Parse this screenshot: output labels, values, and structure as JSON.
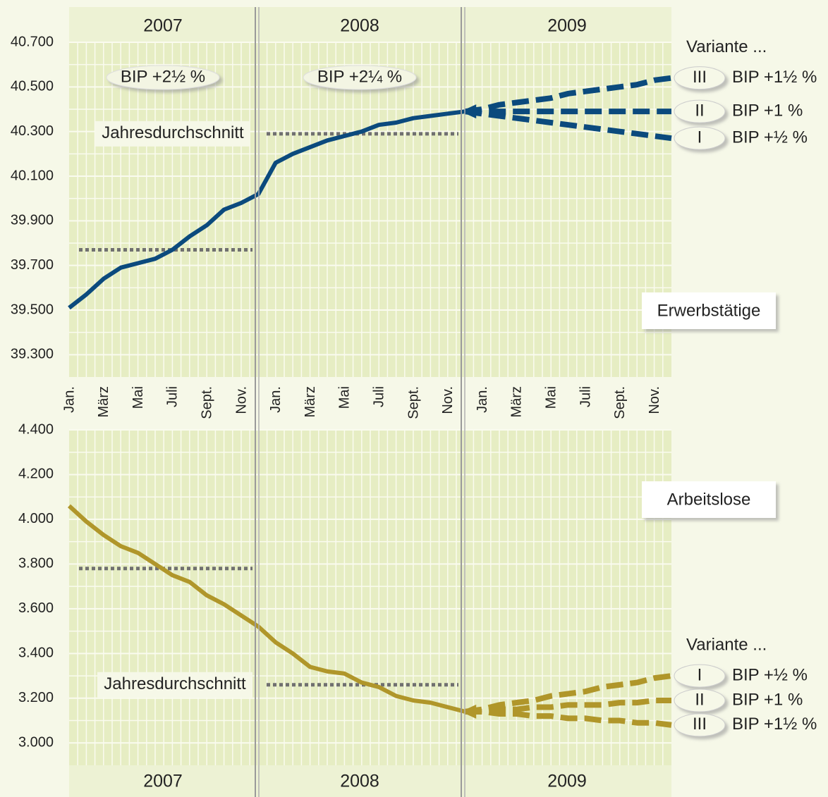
{
  "chart_data": [
    {
      "type": "line",
      "panel_label": "Erwerbstätige",
      "years": [
        "2007",
        "2008",
        "2009"
      ],
      "categories": [
        "Jan.",
        null,
        "März",
        null,
        "Mai",
        null,
        "Juli",
        null,
        "Sept.",
        null,
        "Nov.",
        null,
        "Jan.",
        null,
        "März",
        null,
        "Mai",
        null,
        "Juli",
        null,
        "Sept.",
        null,
        "Nov.",
        null,
        "Jan.",
        null,
        "März",
        null,
        "Mai",
        null,
        "Juli",
        null,
        "Sept.",
        null,
        "Nov.",
        null
      ],
      "ylim": [
        39200,
        40700
      ],
      "yticks": [
        {
          "value": 39300,
          "label": "39.300"
        },
        {
          "value": 39500,
          "label": "39.500"
        },
        {
          "value": 39700,
          "label": "39.700"
        },
        {
          "value": 39900,
          "label": "39.900"
        },
        {
          "value": 40100,
          "label": "40.100"
        },
        {
          "value": 40300,
          "label": "40.300"
        },
        {
          "value": 40500,
          "label": "40.500"
        },
        {
          "value": 40700,
          "label": "40.700"
        }
      ],
      "grid": true,
      "annotations": [
        "BIP +2½ %",
        "BIP +2¼ %"
      ],
      "average_label": "Jahresdurchschnitt",
      "annual_averages": [
        39770,
        40290,
        null
      ],
      "legend_title": "Variante ...",
      "series": [
        {
          "name": "Erwerbstätige",
          "color": "#0b4a7d",
          "dashed": false,
          "values": [
            39510,
            39570,
            39640,
            39690,
            39710,
            39730,
            39770,
            39830,
            39880,
            39950,
            39980,
            40020,
            40160,
            40200,
            40230,
            40260,
            40280,
            40300,
            40330,
            40340,
            40360,
            40370,
            40380,
            40390,
            null,
            null,
            null,
            null,
            null,
            null,
            null,
            null,
            null,
            null,
            null,
            null
          ]
        },
        {
          "name": "III",
          "label": "BIP +1½ %",
          "color": "#0b4a7d",
          "dashed": true,
          "values": [
            null,
            null,
            null,
            null,
            null,
            null,
            null,
            null,
            null,
            null,
            null,
            null,
            null,
            null,
            null,
            null,
            null,
            null,
            null,
            null,
            null,
            null,
            null,
            40390,
            40400,
            40420,
            40430,
            40440,
            40450,
            40470,
            40480,
            40490,
            40500,
            40510,
            40530,
            40540
          ]
        },
        {
          "name": "II",
          "label": "BIP +1 %",
          "color": "#0b4a7d",
          "dashed": true,
          "values": [
            null,
            null,
            null,
            null,
            null,
            null,
            null,
            null,
            null,
            null,
            null,
            null,
            null,
            null,
            null,
            null,
            null,
            null,
            null,
            null,
            null,
            null,
            null,
            40390,
            40390,
            40390,
            40390,
            40390,
            40390,
            40390,
            40390,
            40390,
            40390,
            40390,
            40390,
            40390
          ]
        },
        {
          "name": "I",
          "label": "BIP +½ %",
          "color": "#0b4a7d",
          "dashed": true,
          "values": [
            null,
            null,
            null,
            null,
            null,
            null,
            null,
            null,
            null,
            null,
            null,
            null,
            null,
            null,
            null,
            null,
            null,
            null,
            null,
            null,
            null,
            null,
            null,
            40390,
            40380,
            40370,
            40360,
            40350,
            40340,
            40330,
            40320,
            40310,
            40300,
            40290,
            40280,
            40270
          ]
        }
      ]
    },
    {
      "type": "line",
      "panel_label": "Arbeitslose",
      "years": [
        "2007",
        "2008",
        "2009"
      ],
      "ylim": [
        2900,
        4400
      ],
      "yticks": [
        {
          "value": 3000,
          "label": "3.000"
        },
        {
          "value": 3200,
          "label": "3.200"
        },
        {
          "value": 3400,
          "label": "3.400"
        },
        {
          "value": 3600,
          "label": "3.600"
        },
        {
          "value": 3800,
          "label": "3.800"
        },
        {
          "value": 4000,
          "label": "4.000"
        },
        {
          "value": 4200,
          "label": "4.200"
        },
        {
          "value": 4400,
          "label": "4.400"
        }
      ],
      "grid": true,
      "average_label": "Jahresdurchschnitt",
      "annual_averages": [
        3780,
        3260,
        null
      ],
      "legend_title": "Variante ...",
      "series": [
        {
          "name": "Arbeitslose",
          "color": "#b0962a",
          "dashed": false,
          "values": [
            4060,
            3990,
            3930,
            3880,
            3850,
            3800,
            3750,
            3720,
            3660,
            3620,
            3570,
            3520,
            3450,
            3400,
            3340,
            3320,
            3310,
            3270,
            3250,
            3210,
            3190,
            3180,
            3160,
            3140,
            null,
            null,
            null,
            null,
            null,
            null,
            null,
            null,
            null,
            null,
            null,
            null
          ]
        },
        {
          "name": "I",
          "label": "BIP +½ %",
          "color": "#b0962a",
          "dashed": true,
          "values": [
            null,
            null,
            null,
            null,
            null,
            null,
            null,
            null,
            null,
            null,
            null,
            null,
            null,
            null,
            null,
            null,
            null,
            null,
            null,
            null,
            null,
            null,
            null,
            3140,
            3150,
            3170,
            3180,
            3190,
            3210,
            3220,
            3230,
            3250,
            3260,
            3270,
            3290,
            3300
          ]
        },
        {
          "name": "II",
          "label": "BIP +1 %",
          "color": "#b0962a",
          "dashed": true,
          "values": [
            null,
            null,
            null,
            null,
            null,
            null,
            null,
            null,
            null,
            null,
            null,
            null,
            null,
            null,
            null,
            null,
            null,
            null,
            null,
            null,
            null,
            null,
            null,
            3140,
            3140,
            3150,
            3150,
            3160,
            3160,
            3170,
            3170,
            3170,
            3180,
            3180,
            3190,
            3190
          ]
        },
        {
          "name": "III",
          "label": "BIP +1½ %",
          "color": "#b0962a",
          "dashed": true,
          "values": [
            null,
            null,
            null,
            null,
            null,
            null,
            null,
            null,
            null,
            null,
            null,
            null,
            null,
            null,
            null,
            null,
            null,
            null,
            null,
            null,
            null,
            null,
            null,
            3140,
            3140,
            3130,
            3130,
            3120,
            3120,
            3110,
            3110,
            3100,
            3100,
            3090,
            3090,
            3080
          ]
        }
      ]
    }
  ]
}
